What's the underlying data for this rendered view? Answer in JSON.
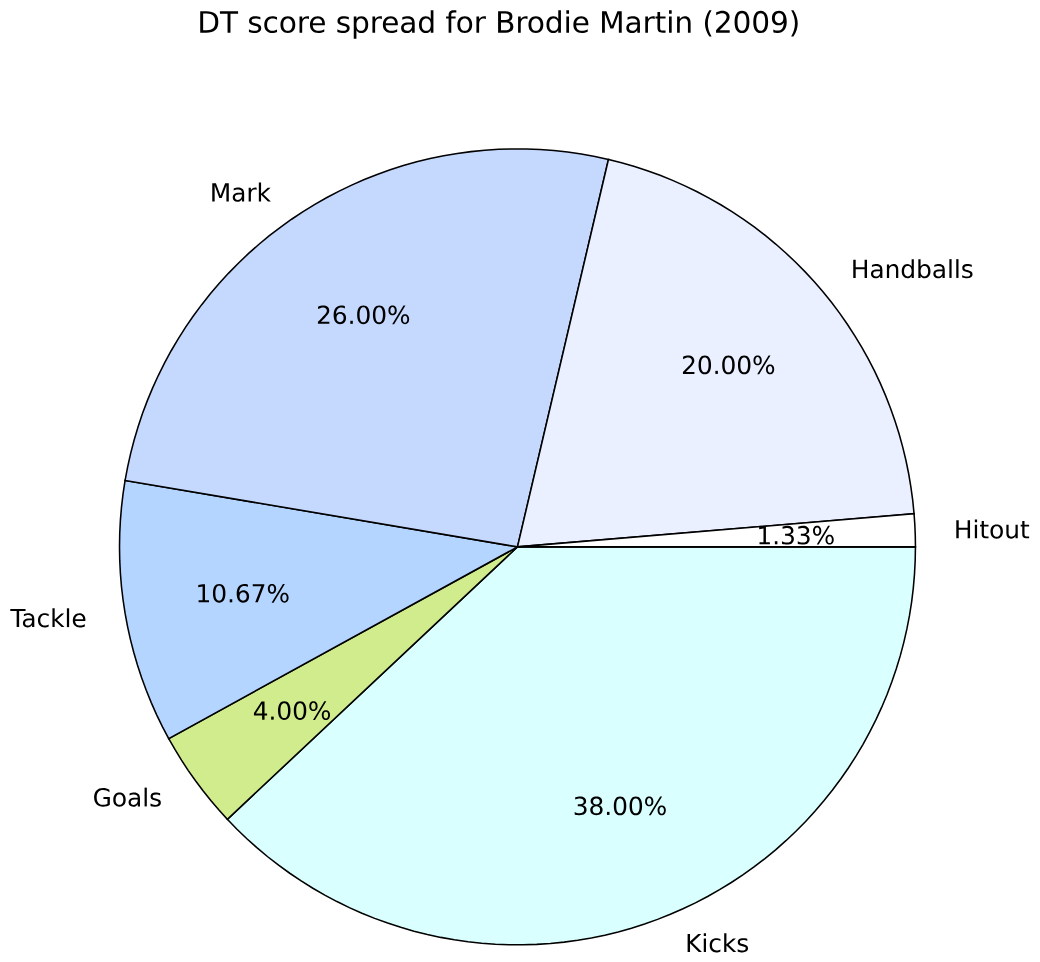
{
  "chart_data": {
    "type": "pie",
    "title": "DT score spread for Brodie Martin (2009)",
    "categories": [
      "Hitout",
      "Handballs",
      "Mark",
      "Tackle",
      "Goals",
      "Kicks"
    ],
    "values": [
      1.33,
      20,
      26,
      10.67,
      4,
      38
    ],
    "value_labels": [
      "1.33%",
      "20.00%",
      "26.00%",
      "10.67%",
      "4.00%",
      "38.00%"
    ],
    "colors": [
      "#ffffff",
      "#eaf0ff",
      "#c5d9ff",
      "#b3d5ff",
      "#d0ec8c",
      "#d9ffff"
    ]
  }
}
